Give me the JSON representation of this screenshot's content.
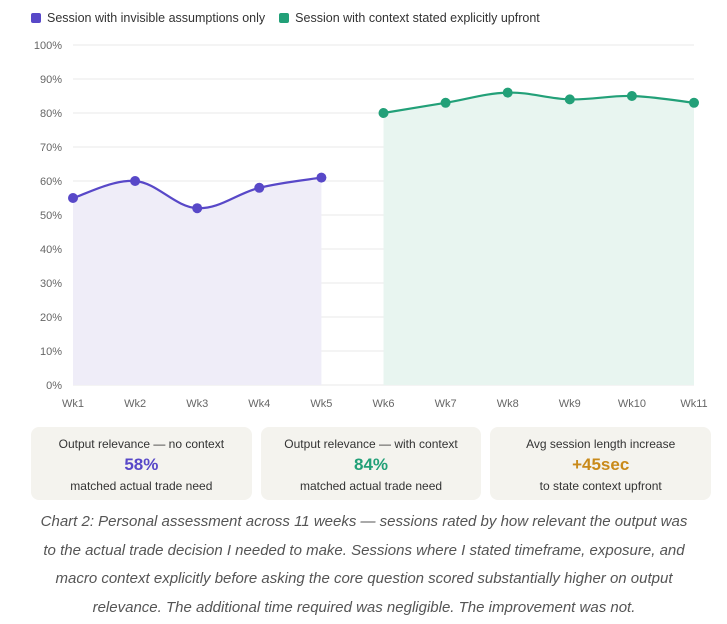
{
  "legend": {
    "series_a": "Session with invisible assumptions only",
    "series_b": "Session with context stated explicitly upfront"
  },
  "colors": {
    "series_a": "#5848c8",
    "series_a_fill": "#efedf8",
    "series_b": "#22a078",
    "series_b_fill": "#e8f5f0",
    "grid": "#e9e9e9",
    "stat_a": "#5848c8",
    "stat_b": "#22a078",
    "stat_c": "#c98a1a"
  },
  "chart_data": {
    "type": "line",
    "title": "",
    "xlabel": "",
    "ylabel": "",
    "categories": [
      "Wk1",
      "Wk2",
      "Wk3",
      "Wk4",
      "Wk5",
      "Wk6",
      "Wk7",
      "Wk8",
      "Wk9",
      "Wk10",
      "Wk11"
    ],
    "y_ticks": [
      "0%",
      "10%",
      "20%",
      "30%",
      "40%",
      "50%",
      "60%",
      "70%",
      "80%",
      "90%",
      "100%"
    ],
    "ylim": [
      0,
      100
    ],
    "series": [
      {
        "name": "Session with invisible assumptions only",
        "values": [
          55,
          60,
          52,
          58,
          61,
          null,
          null,
          null,
          null,
          null,
          null
        ]
      },
      {
        "name": "Session with context stated explicitly upfront",
        "values": [
          null,
          null,
          null,
          null,
          null,
          80,
          83,
          86,
          84,
          85,
          83
        ]
      }
    ],
    "fill": "area under each series",
    "grid": true,
    "legend_position": "top-left"
  },
  "stats": [
    {
      "label": "Output relevance — no context",
      "value": "58%",
      "sub": "matched actual trade need"
    },
    {
      "label": "Output relevance — with context",
      "value": "84%",
      "sub": "matched actual trade need"
    },
    {
      "label": "Avg session length increase",
      "value": "+45sec",
      "sub": "to state context upfront"
    }
  ],
  "caption": "Chart 2: Personal assessment across 11 weeks — sessions rated by how relevant the output was to the actual trade decision I needed to make. Sessions where I stated timeframe, exposure, and macro context explicitly before asking the core question scored substantially higher on output relevance. The additional time required was negligible. The improvement was not."
}
